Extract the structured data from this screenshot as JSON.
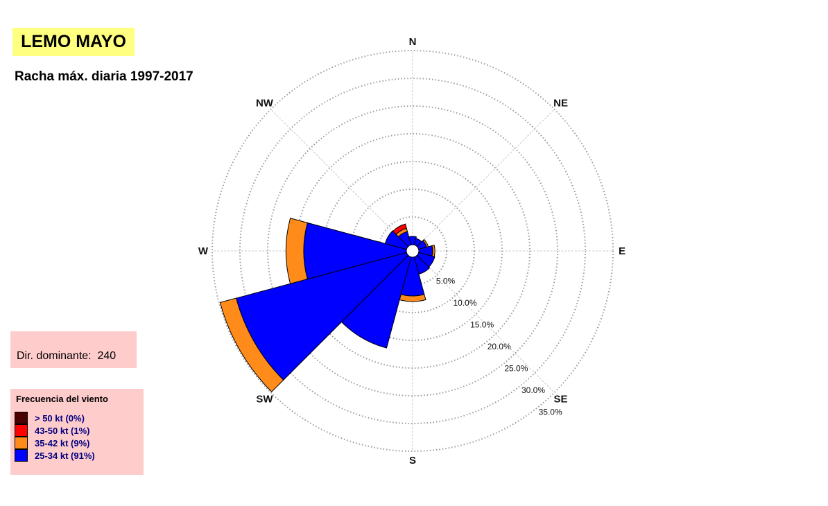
{
  "title": "LEMO MAYO",
  "subtitle": "Racha máx. diaria 1997-2017",
  "dominant": {
    "label": "Dir. dominante:",
    "value": "240"
  },
  "legend": {
    "title": "Frecuencia del viento",
    "items": [
      {
        "label": "> 50 kt (0%)",
        "color": "#4a0000"
      },
      {
        "label": "43-50 kt (1%)",
        "color": "#ff0000"
      },
      {
        "label": "35-42 kt (9%)",
        "color": "#ff8c1a"
      },
      {
        "label": "25-34 kt (91%)",
        "color": "#0000ff"
      }
    ]
  },
  "chart_data": {
    "type": "wind_rose",
    "directions_deg": [
      0,
      30,
      60,
      90,
      120,
      150,
      180,
      210,
      240,
      270,
      300,
      330
    ],
    "direction_labels": {
      "N": 0,
      "NE": 45,
      "E": 90,
      "SE": 135,
      "S": 180,
      "SW": 225,
      "W": 270,
      "NW": 315
    },
    "ring_values": [
      5.0,
      10.0,
      15.0,
      20.0,
      25.0,
      30.0,
      35.0
    ],
    "ring_labels": [
      "5.0%",
      "10.0%",
      "15.0%",
      "20.0%",
      "25.0%",
      "30.0%",
      "35.0%"
    ],
    "rmax": 35,
    "sector_width_deg": 30,
    "series": [
      {
        "name": "25-34 kt",
        "color": "#0000ff",
        "values": [
          1.5,
          1.2,
          1.5,
          2.5,
          3.0,
          3.2,
          7.0,
          17.0,
          31.8,
          18.5,
          4.0,
          2.5
        ]
      },
      {
        "name": "35-42 kt",
        "color": "#ff8c1a",
        "values": [
          0,
          0,
          0.3,
          0.4,
          0,
          0,
          1.0,
          0,
          3.0,
          3.2,
          0,
          0.6
        ]
      },
      {
        "name": "43-50 kt",
        "color": "#ff0000",
        "values": [
          0,
          0,
          0,
          0,
          0,
          0,
          0,
          0,
          0,
          0,
          0,
          0.8
        ]
      },
      {
        "name": "> 50 kt",
        "color": "#4a0000",
        "values": [
          0,
          0,
          0,
          0,
          0,
          0,
          0,
          0,
          0,
          0,
          0,
          0
        ]
      }
    ]
  }
}
